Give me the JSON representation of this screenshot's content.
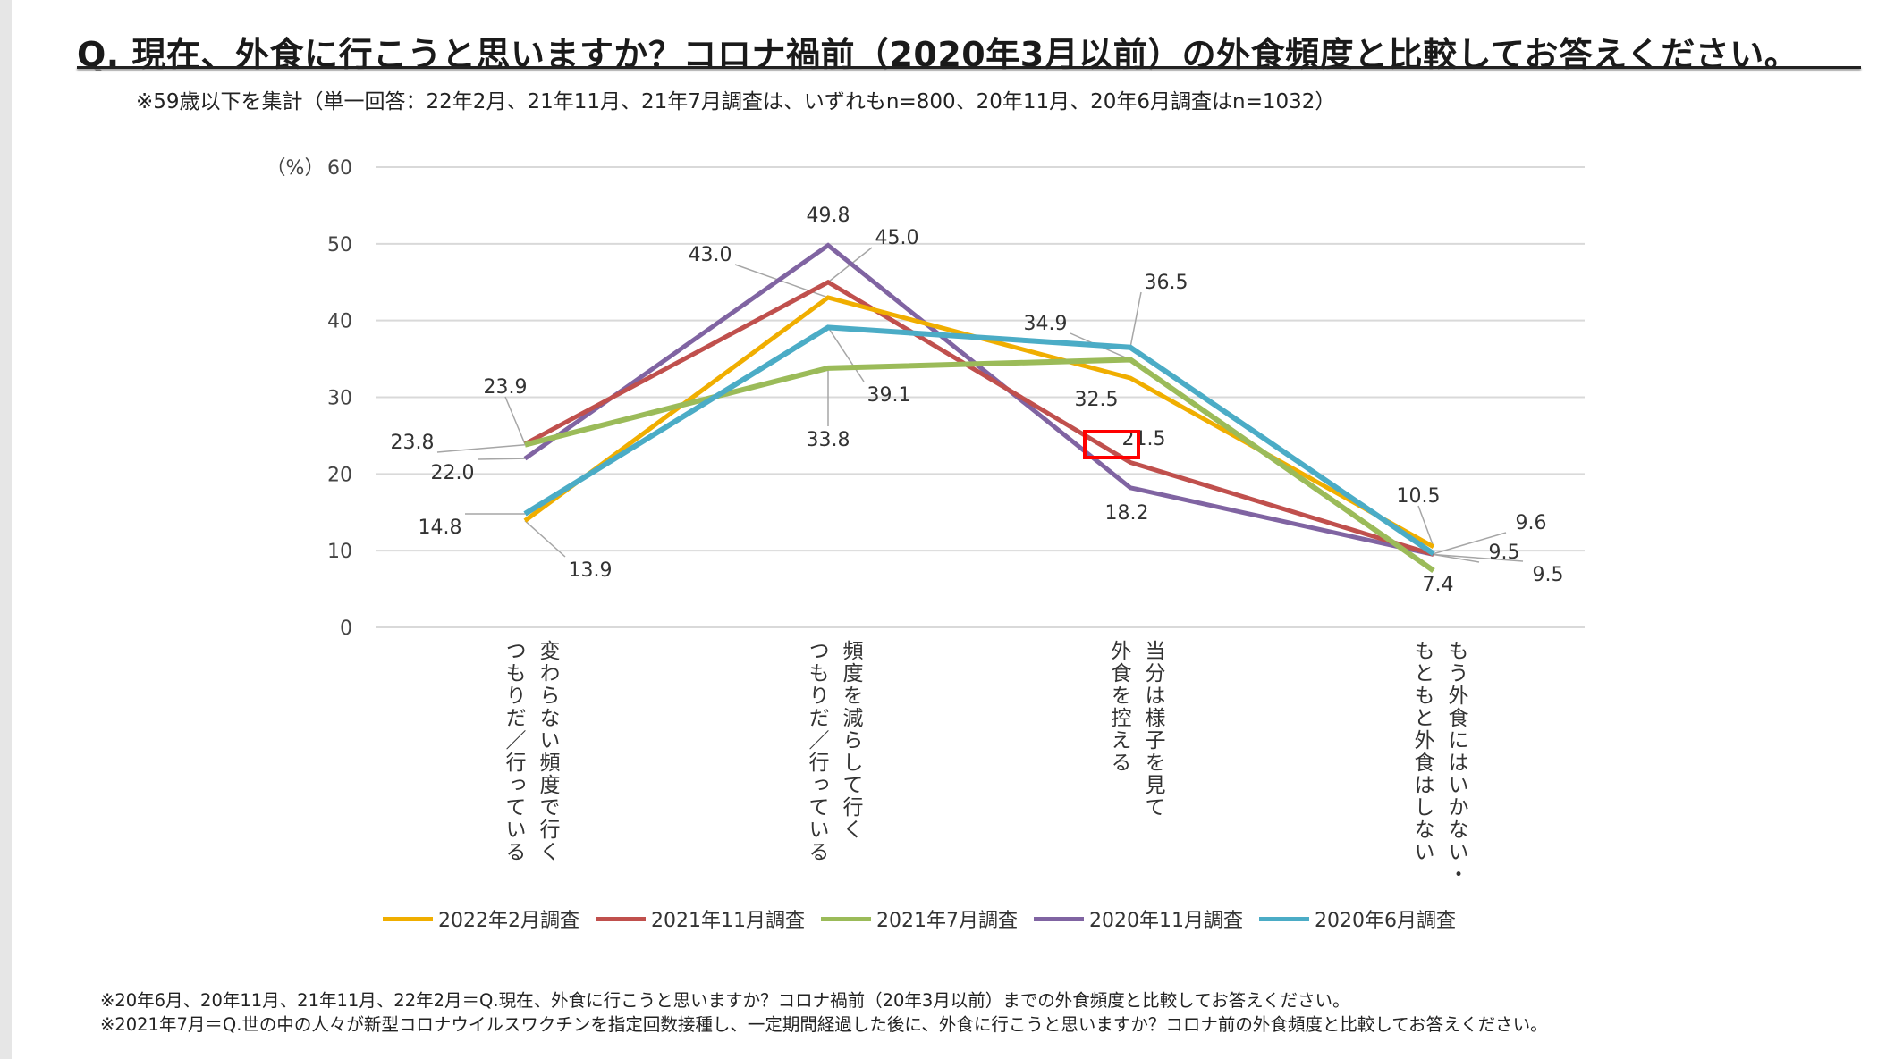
{
  "title": "Q. 現在、外食に行こうと思いますか？コロナ禍前（2020年3月以前）の外食頻度と比較してお答えください。",
  "subtitle": "※59歳以下を集計（単一回答：22年2月、21年11月、21年7月調査は、いずれもn=800、20年11月、20年6月調査はn=1032）",
  "chart_data": {
    "type": "line",
    "ylabel": "（%）",
    "ylim": [
      0,
      60
    ],
    "yticks": [
      "0",
      "10",
      "20",
      "30",
      "40",
      "50",
      "60"
    ],
    "grid": true,
    "legend_position": "bottom",
    "categories": [
      "変わらない頻度で行く\nつもりだ／行っている",
      "頻度を減らして行く\nつもりだ／行っている",
      "当分は様子を見て\n外食を控える",
      "もう外食にはいかない・\nもともと外食はしない"
    ],
    "series": [
      {
        "name": "2022年2月調査",
        "color": "#F0AE00",
        "values": [
          13.9,
          43.0,
          32.5,
          10.5
        ],
        "labels": [
          "13.9",
          "43.0",
          "32.5",
          "10.5"
        ]
      },
      {
        "name": "2021年11月調査",
        "color": "#C0504D",
        "values": [
          23.9,
          45.0,
          21.5,
          9.5
        ],
        "labels": [
          "23.9",
          "45.0",
          "21.5",
          "9.5"
        ]
      },
      {
        "name": "2021年7月調査",
        "color": "#9BBB59",
        "values": [
          23.8,
          33.8,
          34.9,
          7.4
        ],
        "labels": [
          "23.8",
          "33.8",
          "34.9",
          "7.4"
        ]
      },
      {
        "name": "2020年11月調査",
        "color": "#8064A2",
        "values": [
          22.0,
          49.8,
          18.2,
          9.5
        ],
        "labels": [
          "22.0",
          "49.8",
          "18.2",
          "9.5"
        ]
      },
      {
        "name": "2020年6月調査",
        "color": "#4BACC6",
        "values": [
          14.8,
          39.1,
          36.5,
          9.6
        ],
        "labels": [
          "14.8",
          "39.1",
          "36.5",
          "9.6"
        ]
      }
    ]
  },
  "notes": [
    "※20年6月、20年11月、21年11月、22年2月＝Q.現在、外食に行こうと思いますか？コロナ禍前（20年3月以前）までの外食頻度と比較してお答えください。",
    "※2021年7月＝Q.世の中の人々が新型コロナウイルスワクチンを指定回数接種し、一定期間経過した後に、外食に行こうと思いますか？コロナ前の外食頻度と比較してお答えください。"
  ],
  "highlight_color": "#FF0000"
}
